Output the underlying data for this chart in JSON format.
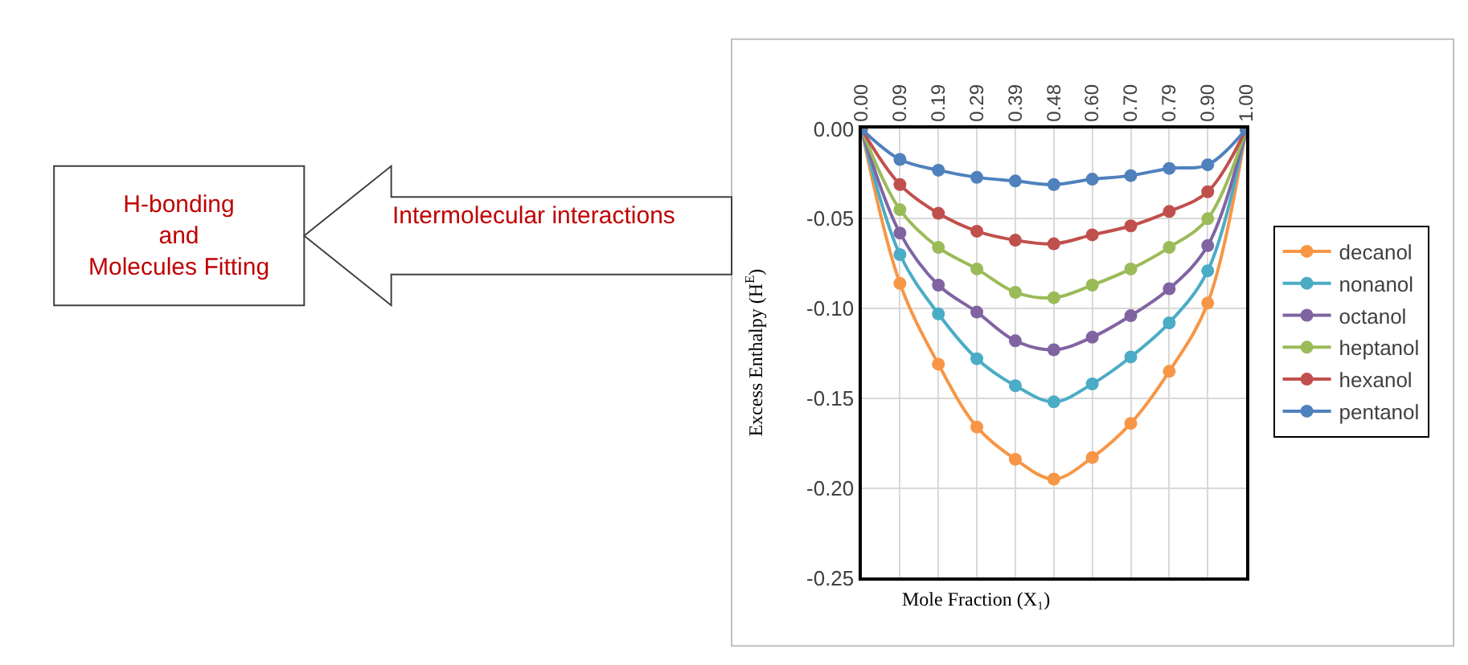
{
  "chart_data": {
    "type": "line",
    "xlabel": "Mole Fraction (X₁)",
    "ylabel": "Excess Enthalpy (H$^{E}$)",
    "categories": [
      "0.00",
      "0.09",
      "0.19",
      "0.29",
      "0.39",
      "0.48",
      "0.60",
      "0.70",
      "0.79",
      "0.90",
      "1.00"
    ],
    "series": [
      {
        "name": "decanol",
        "color": "#f79646",
        "values": [
          0,
          -0.086,
          -0.131,
          -0.166,
          -0.184,
          -0.195,
          -0.183,
          -0.164,
          -0.135,
          -0.097,
          0
        ]
      },
      {
        "name": "nonanol",
        "color": "#4bacc6",
        "values": [
          0,
          -0.07,
          -0.103,
          -0.128,
          -0.143,
          -0.152,
          -0.142,
          -0.127,
          -0.108,
          -0.079,
          0
        ]
      },
      {
        "name": "octanol",
        "color": "#8064a2",
        "values": [
          0,
          -0.058,
          -0.087,
          -0.102,
          -0.118,
          -0.123,
          -0.116,
          -0.104,
          -0.089,
          -0.065,
          0
        ]
      },
      {
        "name": "heptanol",
        "color": "#9bbb59",
        "values": [
          0,
          -0.045,
          -0.066,
          -0.078,
          -0.091,
          -0.094,
          -0.087,
          -0.078,
          -0.066,
          -0.05,
          0
        ]
      },
      {
        "name": "hexanol",
        "color": "#c0504d",
        "values": [
          0,
          -0.031,
          -0.047,
          -0.057,
          -0.062,
          -0.064,
          -0.059,
          -0.054,
          -0.046,
          -0.035,
          0
        ]
      },
      {
        "name": "pentanol",
        "color": "#4f81bd",
        "values": [
          0,
          -0.017,
          -0.023,
          -0.027,
          -0.029,
          -0.031,
          -0.028,
          -0.026,
          -0.022,
          -0.02,
          0
        ]
      }
    ],
    "ylim": [
      -0.25,
      0
    ],
    "yticks": [
      {
        "value": -0.25,
        "label": "-0.25"
      },
      {
        "value": -0.2,
        "label": "-0.20"
      },
      {
        "value": -0.15,
        "label": "-0.15"
      },
      {
        "value": -0.1,
        "label": "-0.10"
      },
      {
        "value": -0.05,
        "label": "-0.05"
      },
      {
        "value": 0,
        "label": "0.00"
      }
    ],
    "grid": true,
    "legend": "right",
    "marker": "circle",
    "line_style": "solid",
    "annotations": [
      "H-bonding\nand\nMolecules Fitting",
      "Intermolecular interactions"
    ]
  }
}
